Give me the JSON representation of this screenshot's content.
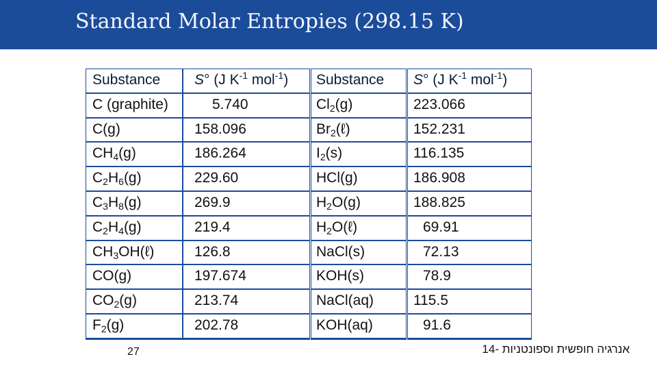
{
  "title": "Standard Molar Entropies (298.15 K)",
  "colors": {
    "title_bar": "#1b4c9a",
    "cell_fill": "#ffffff",
    "header_fill": "#ffffff"
  },
  "table": {
    "headers": [
      {
        "substance": "Substance",
        "entropy": [
          "S° (J K",
          "-1",
          " mol",
          "-1",
          ")"
        ]
      },
      {
        "substance": "Substance",
        "entropy": [
          "S° (J K",
          "-1",
          " mol",
          "-1",
          ")"
        ]
      }
    ],
    "left": [
      {
        "parts": [
          "C (graphite)"
        ],
        "value": "5.740"
      },
      {
        "parts": [
          "C(g)"
        ],
        "value": "158.096"
      },
      {
        "parts": [
          "CH",
          "4",
          "(g)"
        ],
        "value": "186.264"
      },
      {
        "parts": [
          "C",
          "2",
          "H",
          "6",
          "(g)"
        ],
        "value": "229.60"
      },
      {
        "parts": [
          "C",
          "3",
          "H",
          "8",
          "(g)"
        ],
        "value": "269.9"
      },
      {
        "parts": [
          "C",
          "2",
          "H",
          "4",
          "(g)"
        ],
        "value": "219.4"
      },
      {
        "parts": [
          "CH",
          "3",
          "OH(ℓ)"
        ],
        "value": "126.8"
      },
      {
        "parts": [
          "CO(g)"
        ],
        "value": "197.674"
      },
      {
        "parts": [
          "CO",
          "2",
          "(g)"
        ],
        "value": "213.74"
      },
      {
        "parts": [
          "F",
          "2",
          "(g)"
        ],
        "value": "202.78"
      }
    ],
    "right": [
      {
        "parts": [
          "Cl",
          "2",
          "(g)"
        ],
        "value": "223.066"
      },
      {
        "parts": [
          "Br",
          "2",
          "(ℓ)"
        ],
        "value": "152.231"
      },
      {
        "parts": [
          "I",
          "2",
          "(s)"
        ],
        "value": "116.135"
      },
      {
        "parts": [
          "HCl(g)"
        ],
        "value": "186.908"
      },
      {
        "parts": [
          "H",
          "2",
          "O(g)"
        ],
        "value": "188.825"
      },
      {
        "parts": [
          "H",
          "2",
          "O(ℓ)"
        ],
        "value": "69.91"
      },
      {
        "parts": [
          "NaCl(s)"
        ],
        "value": "72.13"
      },
      {
        "parts": [
          "KOH(s)"
        ],
        "value": "78.9"
      },
      {
        "parts": [
          "NaCl(aq)"
        ],
        "value": "115.5"
      },
      {
        "parts": [
          "KOH(aq)"
        ],
        "value": "91.6"
      }
    ]
  },
  "page_number": "27",
  "footer_note": "אנרגיה חופשית וספונטניות -14"
}
